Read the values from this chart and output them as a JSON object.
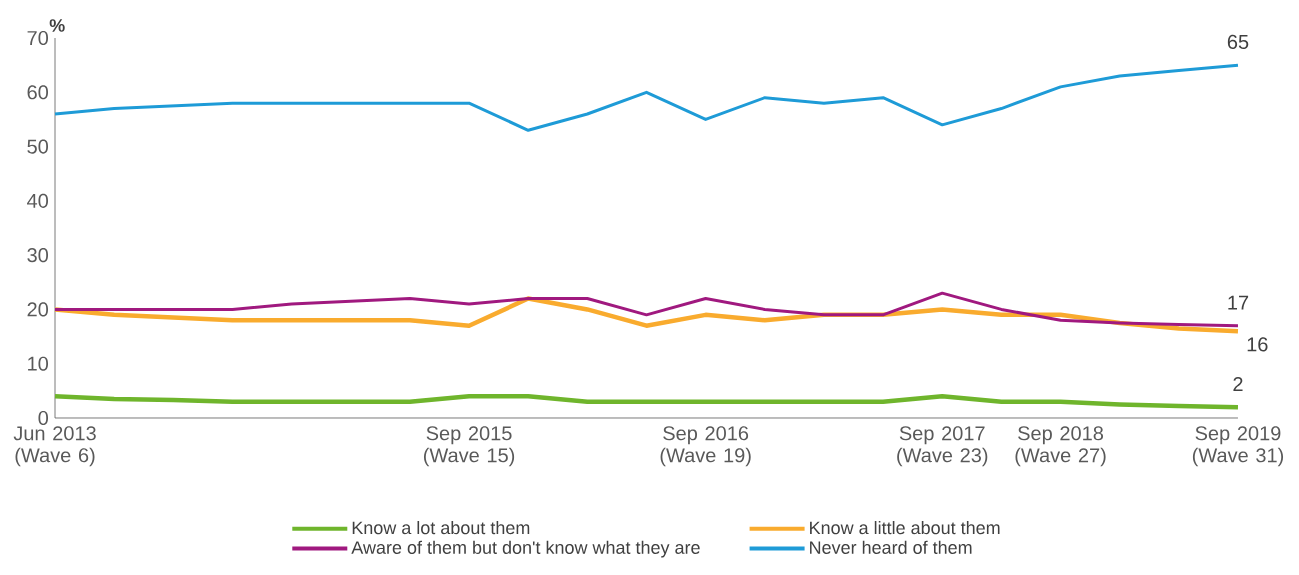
{
  "chart_data": {
    "type": "line",
    "ylabel": "%",
    "categories": [
      "Jun 2013 (Wave 6)",
      null,
      null,
      null,
      null,
      null,
      null,
      "Sep 2015 (Wave 15)",
      null,
      null,
      null,
      "Sep 2016 (Wave 19)",
      null,
      null,
      null,
      "Sep 2017 (Wave 23)",
      null,
      "Sep 2018 (Wave 27)",
      null,
      null,
      "Sep 2019 (Wave 31)"
    ],
    "ylim": [
      0,
      70
    ],
    "yticks": [
      0,
      10,
      20,
      30,
      40,
      50,
      60,
      70
    ],
    "legend": "bottom",
    "series": [
      {
        "name": "Know a lot about them",
        "color": "#6fb52c",
        "values": [
          4,
          3.5,
          3.3,
          3,
          3,
          3,
          3,
          4,
          4,
          3,
          3,
          3,
          3,
          3,
          3,
          4,
          3,
          3,
          2.5,
          2.2,
          2
        ],
        "value_labels": [
          null,
          null,
          null,
          null,
          null,
          null,
          null,
          null,
          null,
          null,
          null,
          null,
          null,
          null,
          null,
          null,
          null,
          null,
          null,
          null,
          "2"
        ]
      },
      {
        "name": "Know a little about them",
        "color": "#f9ab2e",
        "values": [
          20,
          19,
          18.5,
          18,
          18,
          18,
          18,
          17,
          22,
          20,
          17,
          19,
          18,
          19,
          19,
          20,
          19,
          19,
          17.5,
          16.5,
          16
        ],
        "value_labels": [
          null,
          null,
          null,
          null,
          null,
          null,
          null,
          null,
          null,
          null,
          null,
          null,
          null,
          null,
          null,
          null,
          null,
          null,
          null,
          null,
          "16"
        ]
      },
      {
        "name": "Aware of them but don't know what they are",
        "color": "#a0197f",
        "values": [
          20,
          20,
          20,
          20,
          21,
          21.5,
          22,
          21,
          22,
          22,
          19,
          22,
          20,
          19,
          19,
          23,
          20,
          18,
          17.5,
          17.2,
          17
        ],
        "value_labels": [
          null,
          null,
          null,
          null,
          null,
          null,
          null,
          null,
          null,
          null,
          null,
          null,
          null,
          null,
          null,
          null,
          null,
          null,
          null,
          null,
          "17"
        ]
      },
      {
        "name": "Never heard of them",
        "color": "#1e9bd7",
        "values": [
          56,
          57,
          57.5,
          58,
          58,
          58,
          58,
          58,
          53,
          56,
          60,
          55,
          59,
          58,
          59,
          54,
          57,
          61,
          63,
          64,
          65
        ],
        "value_labels": [
          null,
          null,
          null,
          null,
          null,
          null,
          null,
          null,
          null,
          null,
          null,
          null,
          null,
          null,
          null,
          null,
          null,
          null,
          null,
          null,
          "65"
        ]
      }
    ]
  }
}
